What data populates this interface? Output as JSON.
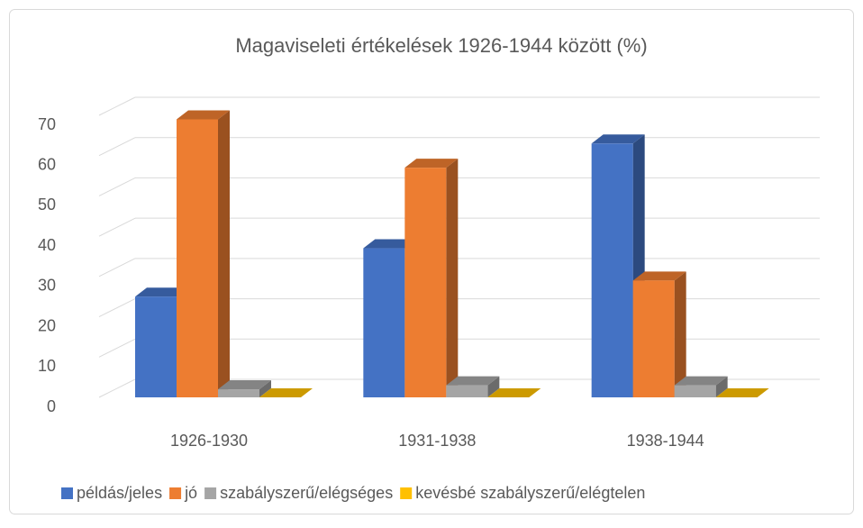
{
  "chart_data": {
    "type": "bar3d",
    "title": "Magaviseleti értékelések 1926-1944 között (%)",
    "categories": [
      "1926-1930",
      "1931-1938",
      "1938-1944"
    ],
    "series": [
      {
        "name": "példás/jeles",
        "color": "#4472c4",
        "values": [
          25,
          37,
          63
        ]
      },
      {
        "name": "jó",
        "color": "#ed7d31",
        "values": [
          69,
          57,
          29
        ]
      },
      {
        "name": "szabályszerű/elégséges",
        "color": "#a5a5a5",
        "values": [
          2,
          3,
          3
        ]
      },
      {
        "name": "kevésbé szabályszerű/elégtelen",
        "color": "#ffc000",
        "values": [
          0,
          0,
          0
        ]
      }
    ],
    "ylim": [
      0,
      70
    ],
    "yticks": [
      0,
      10,
      20,
      30,
      40,
      50,
      60,
      70
    ],
    "grid": true,
    "legend": "bottom"
  }
}
